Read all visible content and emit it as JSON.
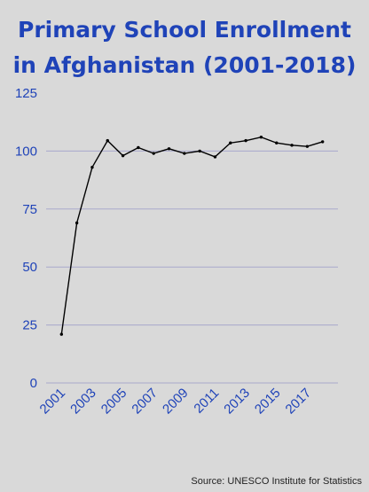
{
  "chart_data": {
    "type": "line",
    "title_lines": [
      "Primary School Enrollment",
      "in Afghanistan (2001-2018)"
    ],
    "xlabel": "",
    "ylabel": "",
    "x": [
      2001,
      2002,
      2003,
      2004,
      2005,
      2006,
      2007,
      2008,
      2009,
      2010,
      2011,
      2012,
      2013,
      2014,
      2015,
      2016,
      2017,
      2018
    ],
    "series": [
      {
        "values": [
          21,
          69,
          93,
          104.5,
          98,
          101.5,
          99,
          101,
          99,
          100,
          97.5,
          103.5,
          104.5,
          106,
          103.5,
          102.5,
          102,
          104
        ]
      }
    ],
    "ylim": [
      0,
      125
    ],
    "yticks": [
      "0",
      "25",
      "50",
      "75",
      "100",
      "125"
    ],
    "xtick_values": [
      2001,
      2003,
      2005,
      2007,
      2009,
      2011,
      2013,
      2015,
      2017
    ],
    "xticks": [
      "2001",
      "2003",
      "2005",
      "2007",
      "2009",
      "2011",
      "2013",
      "2015",
      "2017"
    ],
    "grid": true,
    "legend": "none",
    "source": "Source: UNESCO Institute for Statistics",
    "colors": {
      "title": "#1f43b8",
      "ticks": "#1f43b8",
      "line": "#000000",
      "grid": "#a9a9cc",
      "background": "#d9d9d9"
    }
  }
}
